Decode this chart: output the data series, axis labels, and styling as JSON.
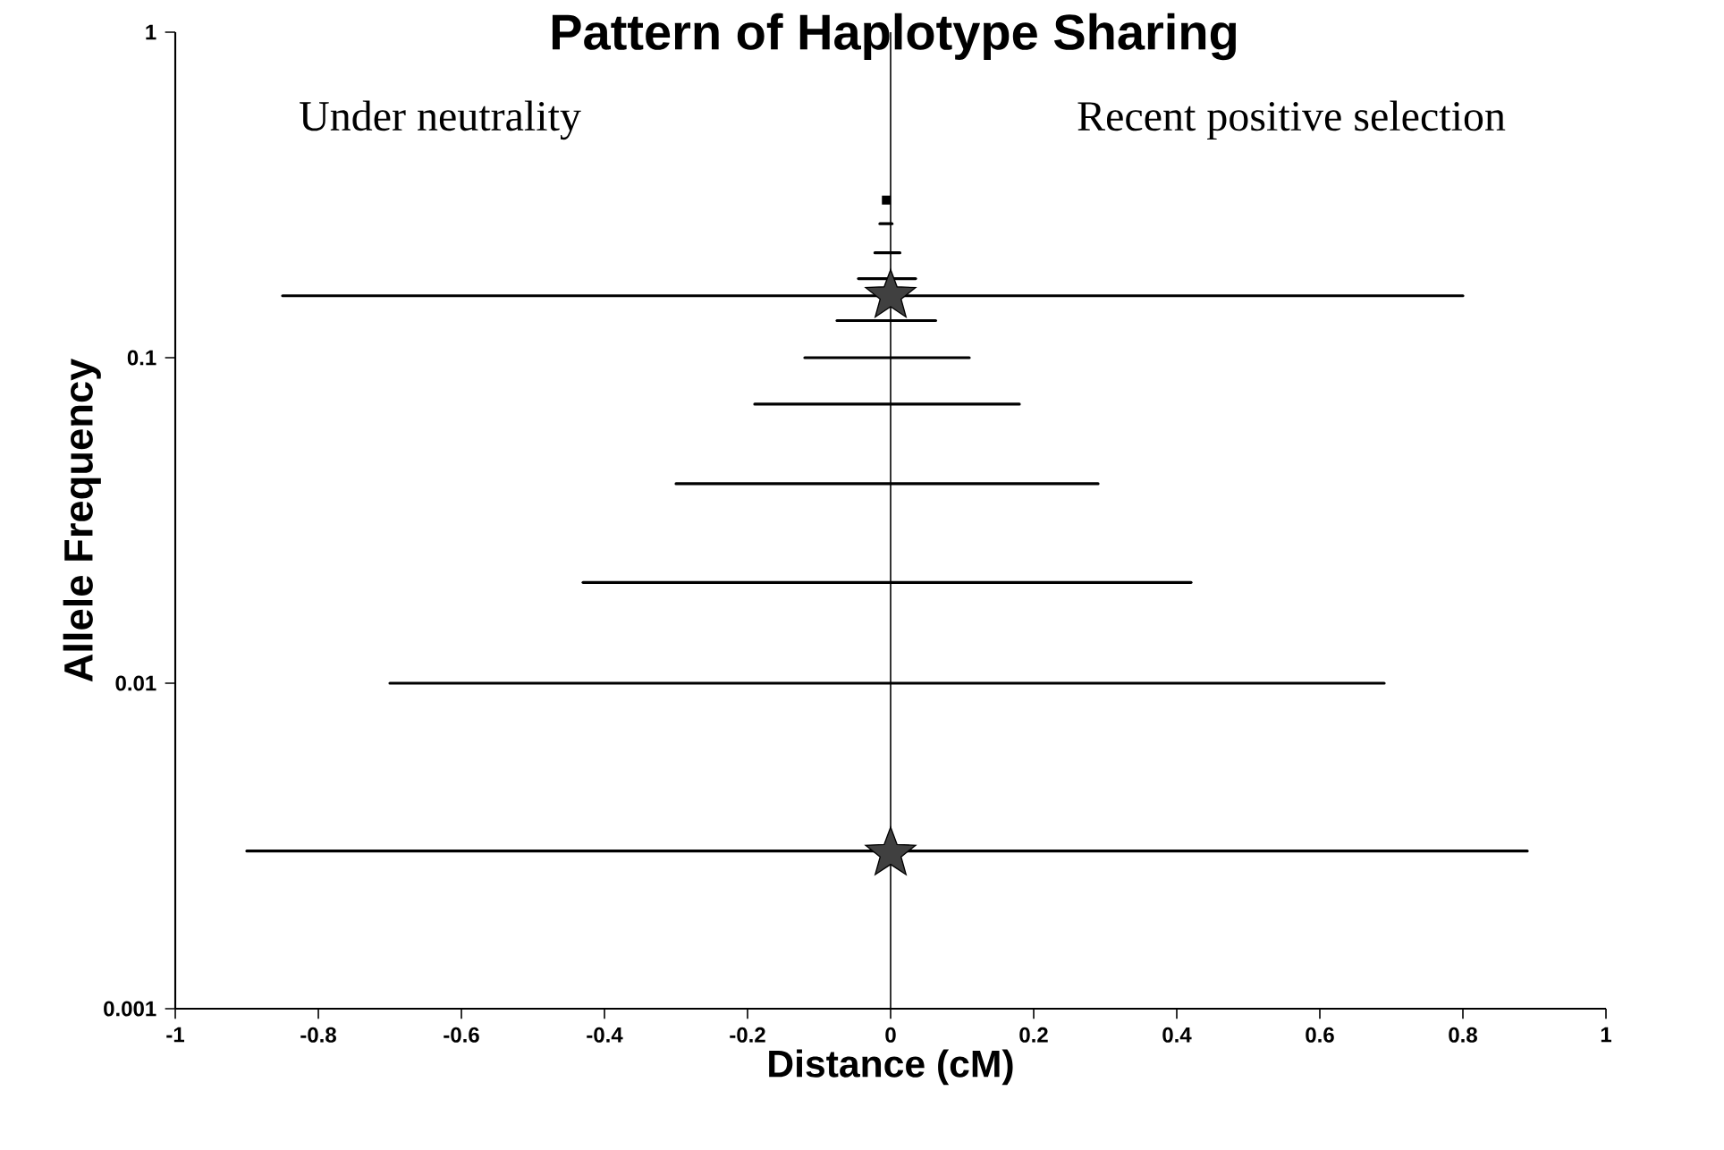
{
  "chart_data": {
    "type": "line",
    "title": "Pattern of Haplotype Sharing",
    "xlabel": "Distance (cM)",
    "ylabel": "Allele Frequency",
    "annotations": [
      "Under neutrality",
      "Recent positive selection"
    ],
    "log": "y",
    "xlim": [
      -1,
      1
    ],
    "ylim": [
      0.001,
      1
    ],
    "marker": "none",
    "color": "#000000",
    "xticks": [
      -1,
      -0.8,
      -0.6,
      -0.4,
      -0.2,
      0,
      0.2,
      0.4,
      0.6,
      0.8,
      1
    ],
    "yticks": [
      0.001,
      0.01,
      0.1,
      1
    ],
    "ref_lines": [
      {
        "axis": "x",
        "value": 0,
        "color": "#000000"
      }
    ],
    "series": [
      {
        "type": "scatter",
        "marker": "square",
        "x": [
          -0.006
        ],
        "values": [
          0.305
        ]
      },
      {
        "x": [
          -0.015,
          0.002
        ],
        "values": [
          0.258,
          0.258
        ]
      },
      {
        "x": [
          -0.022,
          0.013
        ],
        "values": [
          0.21,
          0.21
        ]
      },
      {
        "x": [
          -0.045,
          0.035
        ],
        "values": [
          0.175,
          0.175
        ]
      },
      {
        "x": [
          -0.85,
          0.8
        ],
        "values": [
          0.155,
          0.155
        ]
      },
      {
        "x": [
          -0.075,
          0.063
        ],
        "values": [
          0.13,
          0.13
        ]
      },
      {
        "x": [
          -0.12,
          0.11
        ],
        "values": [
          0.1,
          0.1
        ]
      },
      {
        "x": [
          -0.19,
          0.18
        ],
        "values": [
          0.072,
          0.072
        ]
      },
      {
        "x": [
          -0.3,
          0.29
        ],
        "values": [
          0.041,
          0.041
        ]
      },
      {
        "x": [
          -0.43,
          0.42
        ],
        "values": [
          0.0204,
          0.0204
        ]
      },
      {
        "x": [
          -0.7,
          0.69
        ],
        "values": [
          0.01,
          0.01
        ]
      },
      {
        "x": [
          -0.9,
          0.89
        ],
        "values": [
          0.00305,
          0.00305
        ]
      },
      {
        "type": "scatter",
        "marker": "star",
        "color": "#404040",
        "x": [
          0,
          0
        ],
        "values": [
          0.155,
          0.003
        ]
      }
    ]
  }
}
